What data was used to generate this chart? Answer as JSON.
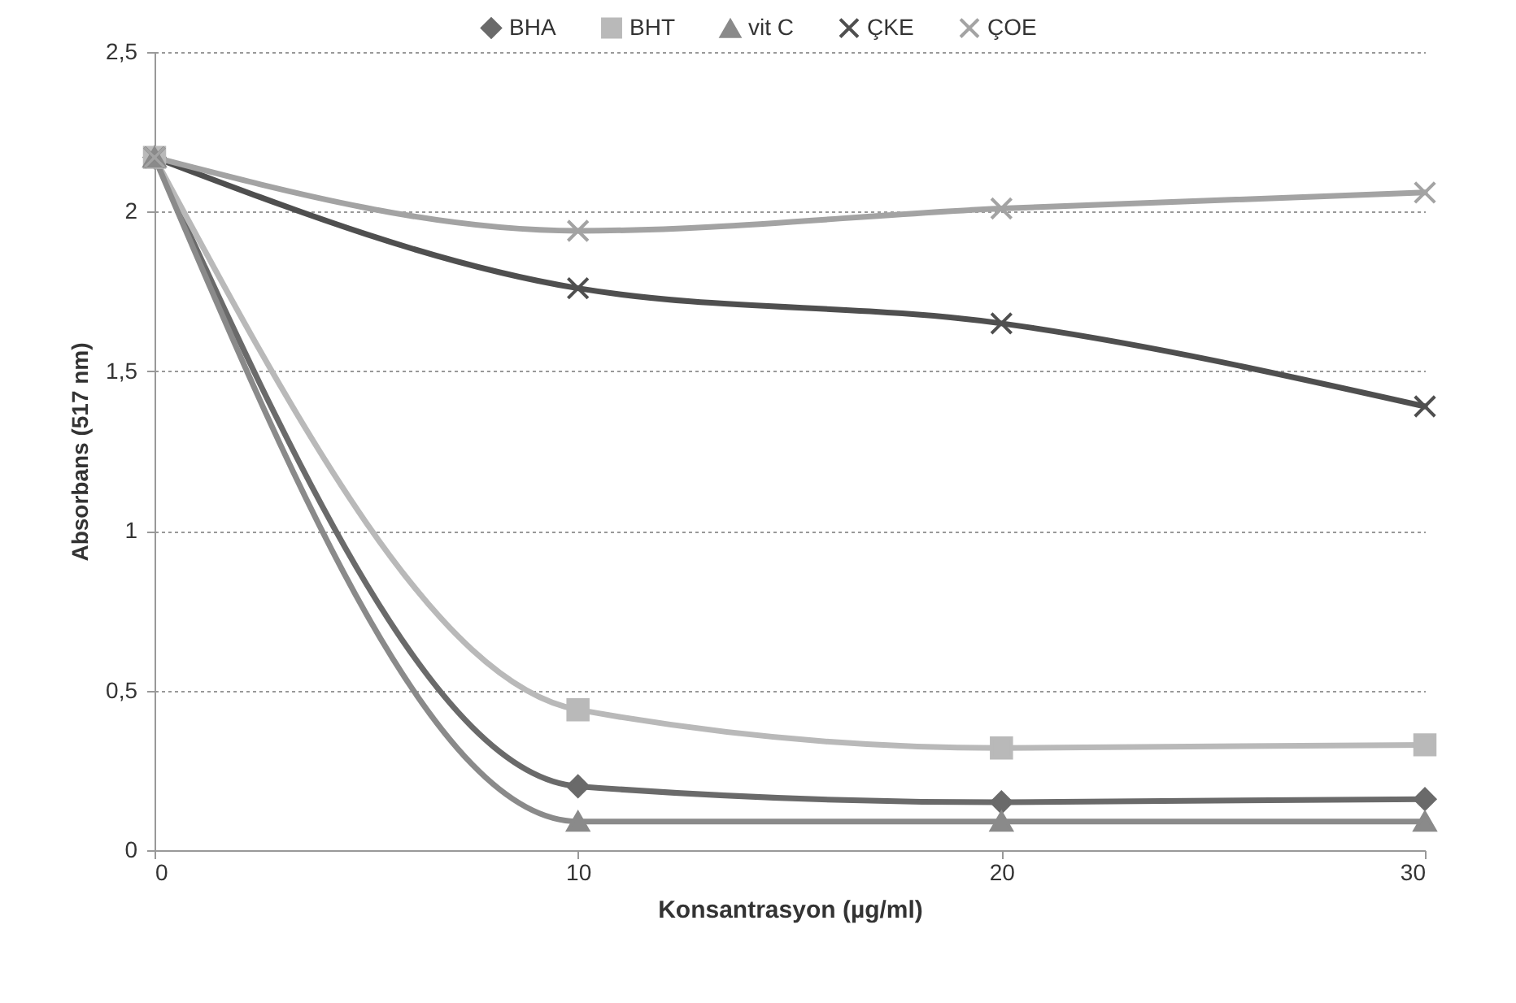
{
  "chart_data": {
    "type": "line",
    "xlabel": "Konsantrasyon (µg/ml)",
    "ylabel": "Absorbans (517 nm)",
    "x": [
      0,
      10,
      20,
      30
    ],
    "series": [
      {
        "name": "BHA",
        "color": "#6a6a6a",
        "marker": "diamond",
        "values": [
          2.17,
          0.2,
          0.15,
          0.16
        ]
      },
      {
        "name": "BHT",
        "color": "#b9b9b9",
        "marker": "square",
        "values": [
          2.17,
          0.44,
          0.32,
          0.33
        ]
      },
      {
        "name": "vit C",
        "color": "#8a8a8a",
        "marker": "triangle",
        "values": [
          2.17,
          0.09,
          0.09,
          0.09
        ]
      },
      {
        "name": "ÇKE",
        "color": "#4f4f4f",
        "marker": "cross",
        "values": [
          2.17,
          1.76,
          1.65,
          1.39
        ]
      },
      {
        "name": "ÇOE",
        "color": "#a3a3a3",
        "marker": "cross",
        "values": [
          2.17,
          1.94,
          2.01,
          2.06
        ]
      }
    ],
    "xlim": [
      0,
      30
    ],
    "xticks": [
      0,
      10,
      20,
      30
    ],
    "ylim": [
      0,
      2.5
    ],
    "yticks": [
      0,
      {
        "value": 0.5,
        "label": "0,5"
      },
      1,
      {
        "value": 1.5,
        "label": "1,5"
      },
      2,
      {
        "value": 2.5,
        "label": "2,5"
      }
    ],
    "grid": "y",
    "legend": "top",
    "line_style": "solid"
  }
}
